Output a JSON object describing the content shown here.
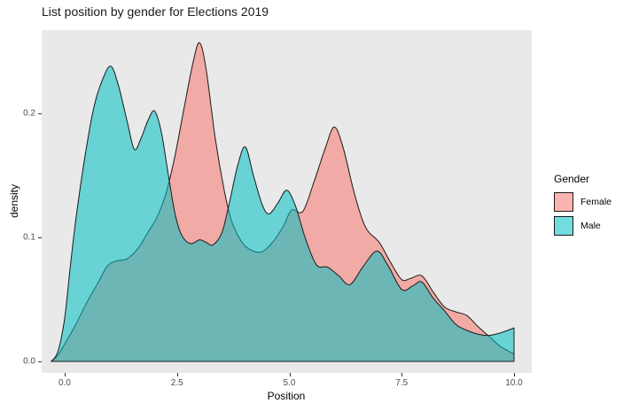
{
  "title": "List position by gender for Elections 2019",
  "colors": {
    "panel_bg": "#E9E9E9",
    "female_fill": "#F8766D",
    "male_fill": "#00BFC4",
    "fill_alpha": 0.55,
    "outline": "#1A1A1A",
    "tick_label_color": "#4D4D4D",
    "tick_mark_color": "#333333"
  },
  "chart_data": {
    "type": "area",
    "subtype": "density",
    "title": "List position by gender for Elections 2019",
    "xlabel": "Position",
    "ylabel": "density",
    "grid": false,
    "xlim": [
      -0.51,
      10.39
    ],
    "ylim": [
      -0.009,
      0.267
    ],
    "x_ticks": [
      {
        "value": 0,
        "label": "0.0"
      },
      {
        "value": 2.5,
        "label": "2.5"
      },
      {
        "value": 5,
        "label": "5.0"
      },
      {
        "value": 7.5,
        "label": "7.5"
      },
      {
        "value": 10,
        "label": "10.0"
      }
    ],
    "y_ticks": [
      {
        "value": 0,
        "label": "0.0"
      },
      {
        "value": 0.1,
        "label": "0.1"
      },
      {
        "value": 0.2,
        "label": "0.2"
      }
    ],
    "legend": {
      "title": "Gender",
      "position": "right",
      "entries": [
        {
          "label": "Female",
          "color": "#F8766D"
        },
        {
          "label": "Male",
          "color": "#00BFC4"
        }
      ]
    },
    "series": [
      {
        "name": "Female",
        "color": "#F8766D",
        "points": [
          [
            -0.3,
            0
          ],
          [
            -0.15,
            0.005
          ],
          [
            0,
            0.014
          ],
          [
            0.25,
            0.03
          ],
          [
            0.5,
            0.048
          ],
          [
            0.75,
            0.064
          ],
          [
            0.95,
            0.077
          ],
          [
            1.15,
            0.081
          ],
          [
            1.4,
            0.083
          ],
          [
            1.65,
            0.092
          ],
          [
            1.85,
            0.104
          ],
          [
            2.05,
            0.116
          ],
          [
            2.25,
            0.135
          ],
          [
            2.45,
            0.165
          ],
          [
            2.65,
            0.203
          ],
          [
            2.85,
            0.24
          ],
          [
            3,
            0.257
          ],
          [
            3.15,
            0.235
          ],
          [
            3.35,
            0.18
          ],
          [
            3.55,
            0.138
          ],
          [
            3.7,
            0.115
          ],
          [
            3.85,
            0.102
          ],
          [
            4.05,
            0.092
          ],
          [
            4.35,
            0.088
          ],
          [
            4.6,
            0.095
          ],
          [
            4.85,
            0.108
          ],
          [
            5.05,
            0.122
          ],
          [
            5.3,
            0.121
          ],
          [
            5.55,
            0.145
          ],
          [
            5.8,
            0.172
          ],
          [
            6,
            0.189
          ],
          [
            6.2,
            0.172
          ],
          [
            6.45,
            0.135
          ],
          [
            6.7,
            0.108
          ],
          [
            7,
            0.096
          ],
          [
            7.25,
            0.08
          ],
          [
            7.5,
            0.066
          ],
          [
            7.7,
            0.067
          ],
          [
            7.95,
            0.069
          ],
          [
            8.2,
            0.056
          ],
          [
            8.45,
            0.044
          ],
          [
            8.7,
            0.04
          ],
          [
            8.95,
            0.037
          ],
          [
            9.2,
            0.028
          ],
          [
            9.45,
            0.02
          ],
          [
            9.7,
            0.012
          ],
          [
            10,
            0.006
          ]
        ]
      },
      {
        "name": "Male",
        "color": "#00BFC4",
        "points": [
          [
            -0.3,
            0
          ],
          [
            -0.15,
            0.008
          ],
          [
            0,
            0.035
          ],
          [
            0.12,
            0.075
          ],
          [
            0.25,
            0.115
          ],
          [
            0.45,
            0.165
          ],
          [
            0.65,
            0.205
          ],
          [
            0.85,
            0.228
          ],
          [
            1.03,
            0.238
          ],
          [
            1.2,
            0.222
          ],
          [
            1.4,
            0.192
          ],
          [
            1.55,
            0.171
          ],
          [
            1.7,
            0.18
          ],
          [
            1.85,
            0.194
          ],
          [
            2,
            0.202
          ],
          [
            2.15,
            0.185
          ],
          [
            2.3,
            0.152
          ],
          [
            2.45,
            0.12
          ],
          [
            2.6,
            0.102
          ],
          [
            2.8,
            0.095
          ],
          [
            3,
            0.098
          ],
          [
            3.15,
            0.096
          ],
          [
            3.3,
            0.094
          ],
          [
            3.5,
            0.104
          ],
          [
            3.66,
            0.127
          ],
          [
            3.85,
            0.158
          ],
          [
            4.02,
            0.173
          ],
          [
            4.2,
            0.15
          ],
          [
            4.4,
            0.126
          ],
          [
            4.55,
            0.119
          ],
          [
            4.75,
            0.128
          ],
          [
            4.94,
            0.138
          ],
          [
            5.13,
            0.126
          ],
          [
            5.35,
            0.1
          ],
          [
            5.6,
            0.078
          ],
          [
            5.85,
            0.076
          ],
          [
            6.1,
            0.069
          ],
          [
            6.35,
            0.062
          ],
          [
            6.65,
            0.077
          ],
          [
            6.95,
            0.089
          ],
          [
            7.2,
            0.077
          ],
          [
            7.5,
            0.058
          ],
          [
            7.75,
            0.061
          ],
          [
            7.95,
            0.064
          ],
          [
            8.2,
            0.051
          ],
          [
            8.45,
            0.041
          ],
          [
            8.7,
            0.03
          ],
          [
            8.95,
            0.025
          ],
          [
            9.2,
            0.022
          ],
          [
            9.45,
            0.021
          ],
          [
            9.7,
            0.023
          ],
          [
            10,
            0.027
          ]
        ]
      }
    ]
  }
}
